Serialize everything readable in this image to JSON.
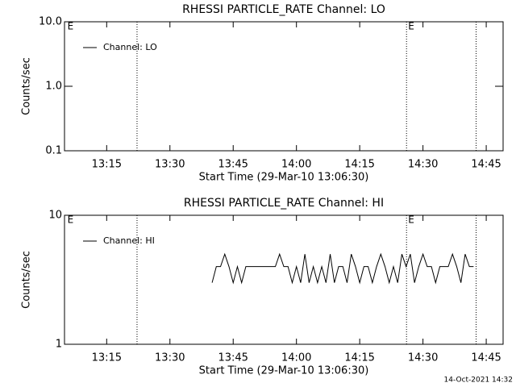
{
  "chart_data": [
    {
      "type": "line",
      "title": "RHESSI PARTICLE_RATE Channel: LO",
      "ylabel": "Counts/sec",
      "xlabel": "Start Time (29-Mar-10 13:06:30)",
      "log_y": true,
      "ylim": [
        0.1,
        10
      ],
      "yticks": [
        0.1,
        {
          "value": 1,
          "label": "1.0"
        },
        {
          "value": 10,
          "label": "10.0"
        }
      ],
      "xlim": [
        785,
        889
      ],
      "xticks": [
        {
          "value": 795,
          "label": "13:15"
        },
        {
          "value": 810,
          "label": "13:30"
        },
        {
          "value": 825,
          "label": "13:45"
        },
        {
          "value": 840,
          "label": "14:00"
        },
        {
          "value": 855,
          "label": "14:15"
        },
        {
          "value": 870,
          "label": "14:30"
        },
        {
          "value": 885,
          "label": "14:45"
        }
      ],
      "vlines": [
        802.2,
        866.1,
        882.6
      ],
      "annotations": [
        {
          "text": "E",
          "x": 785.5
        },
        {
          "text": "E",
          "x": 866.3
        }
      ],
      "legend": "upper left",
      "series": [
        {
          "name": "Channel: LO",
          "color": "#000000",
          "x": [],
          "values": []
        }
      ]
    },
    {
      "type": "line",
      "title": "RHESSI PARTICLE_RATE Channel: HI",
      "ylabel": "Counts/sec",
      "xlabel": "Start Time (29-Mar-10 13:06:30)",
      "log_y": true,
      "ylim": [
        1,
        10
      ],
      "yticks": [
        1,
        10
      ],
      "xlim": [
        785,
        889
      ],
      "xticks": [
        {
          "value": 795,
          "label": "13:15"
        },
        {
          "value": 810,
          "label": "13:30"
        },
        {
          "value": 825,
          "label": "13:45"
        },
        {
          "value": 840,
          "label": "14:00"
        },
        {
          "value": 855,
          "label": "14:15"
        },
        {
          "value": 870,
          "label": "14:30"
        },
        {
          "value": 885,
          "label": "14:45"
        }
      ],
      "vlines": [
        802.2,
        866.1,
        882.6
      ],
      "annotations": [
        {
          "text": "E",
          "x": 785.5
        },
        {
          "text": "E",
          "x": 866.3
        }
      ],
      "legend": "upper left",
      "series": [
        {
          "name": "Channel: HI",
          "color": "#000000",
          "x": [
            820,
            821,
            822,
            823,
            824,
            825,
            826,
            827,
            828,
            829,
            830,
            831,
            832,
            833,
            834,
            835,
            836,
            837,
            838,
            839,
            840,
            841,
            842,
            843,
            844,
            845,
            846,
            847,
            848,
            849,
            850,
            851,
            852,
            853,
            854,
            855,
            856,
            857,
            858,
            859,
            860,
            861,
            862,
            863,
            864,
            865,
            866,
            867,
            868,
            869,
            870,
            871,
            872,
            873,
            874,
            875,
            876,
            877,
            878,
            879,
            880,
            881,
            882
          ],
          "values": [
            3,
            4,
            4,
            5,
            4,
            3,
            4,
            3,
            4,
            4,
            4,
            4,
            4,
            4,
            4,
            4,
            5,
            4,
            4,
            3,
            4,
            3,
            5,
            3,
            4,
            3,
            4,
            3,
            5,
            3,
            4,
            4,
            3,
            5,
            4,
            3,
            4,
            4,
            3,
            4,
            5,
            4,
            3,
            4,
            3,
            5,
            4,
            5,
            3,
            4,
            5,
            4,
            4,
            3,
            4,
            4,
            4,
            5,
            4,
            3,
            5,
            4,
            4
          ]
        }
      ]
    }
  ],
  "footer": "14-Oct-2021 14:32"
}
